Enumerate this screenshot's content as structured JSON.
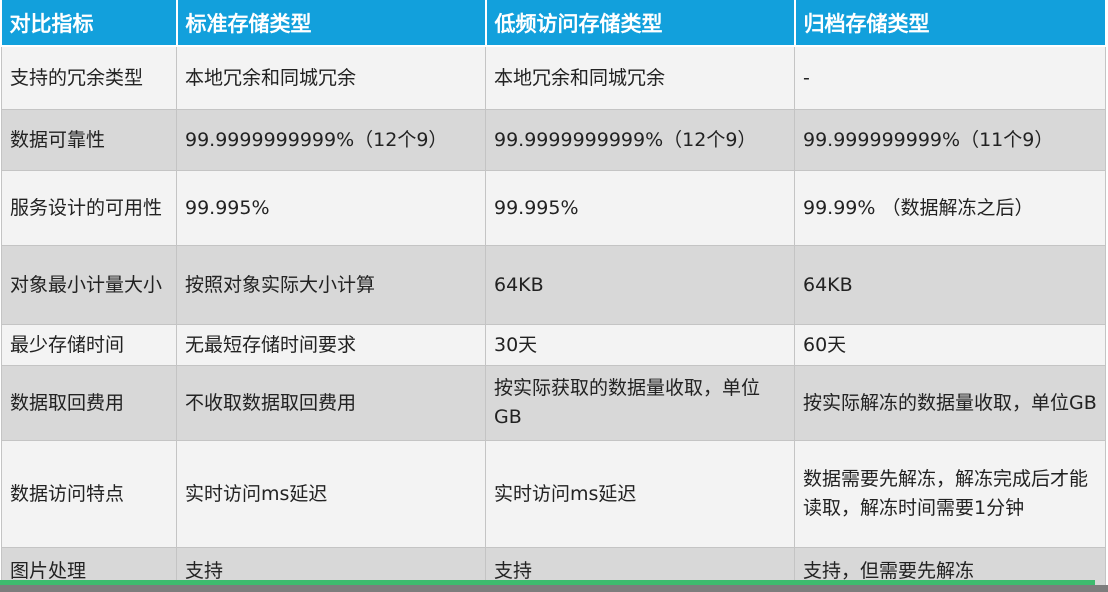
{
  "table": {
    "headers": [
      "对比指标",
      "标准存储类型",
      "低频访问存储类型",
      "归档存储类型"
    ],
    "rows": [
      [
        "支持的冗余类型",
        "本地冗余和同城冗余",
        "本地冗余和同城冗余",
        "-"
      ],
      [
        "数据可靠性",
        "99.9999999999%（12个9）",
        "99.9999999999%（12个9）",
        "99.999999999%（11个9）"
      ],
      [
        "服务设计的可用性",
        "99.995%",
        "99.995%",
        "99.99% （数据解冻之后）"
      ],
      [
        "对象最小计量大小",
        "按照对象实际大小计算",
        "64KB",
        "64KB"
      ],
      [
        "最少存储时间",
        "无最短存储时间要求",
        "30天",
        "60天"
      ],
      [
        "数据取回费用",
        "不收取数据取回费用",
        "按实际获取的数据量收取，单位GB",
        "按实际解冻的数据量收取，单位GB"
      ],
      [
        "数据访问特点",
        "实时访问ms延迟",
        "实时访问ms延迟",
        "数据需要先解冻，解冻完成后才能读取，解冻时间需要1分钟"
      ],
      [
        "图片处理",
        "支持",
        "支持",
        "支持，但需要先解冻"
      ]
    ]
  },
  "colors": {
    "header_bg": "#12a0dc",
    "header_text": "#ffffff",
    "row_light": "#f3f3f3",
    "row_dark": "#d8d8d8",
    "bottom_bar_green": "#3dbb6e",
    "bottom_bar_gray": "#7d7d7d"
  }
}
